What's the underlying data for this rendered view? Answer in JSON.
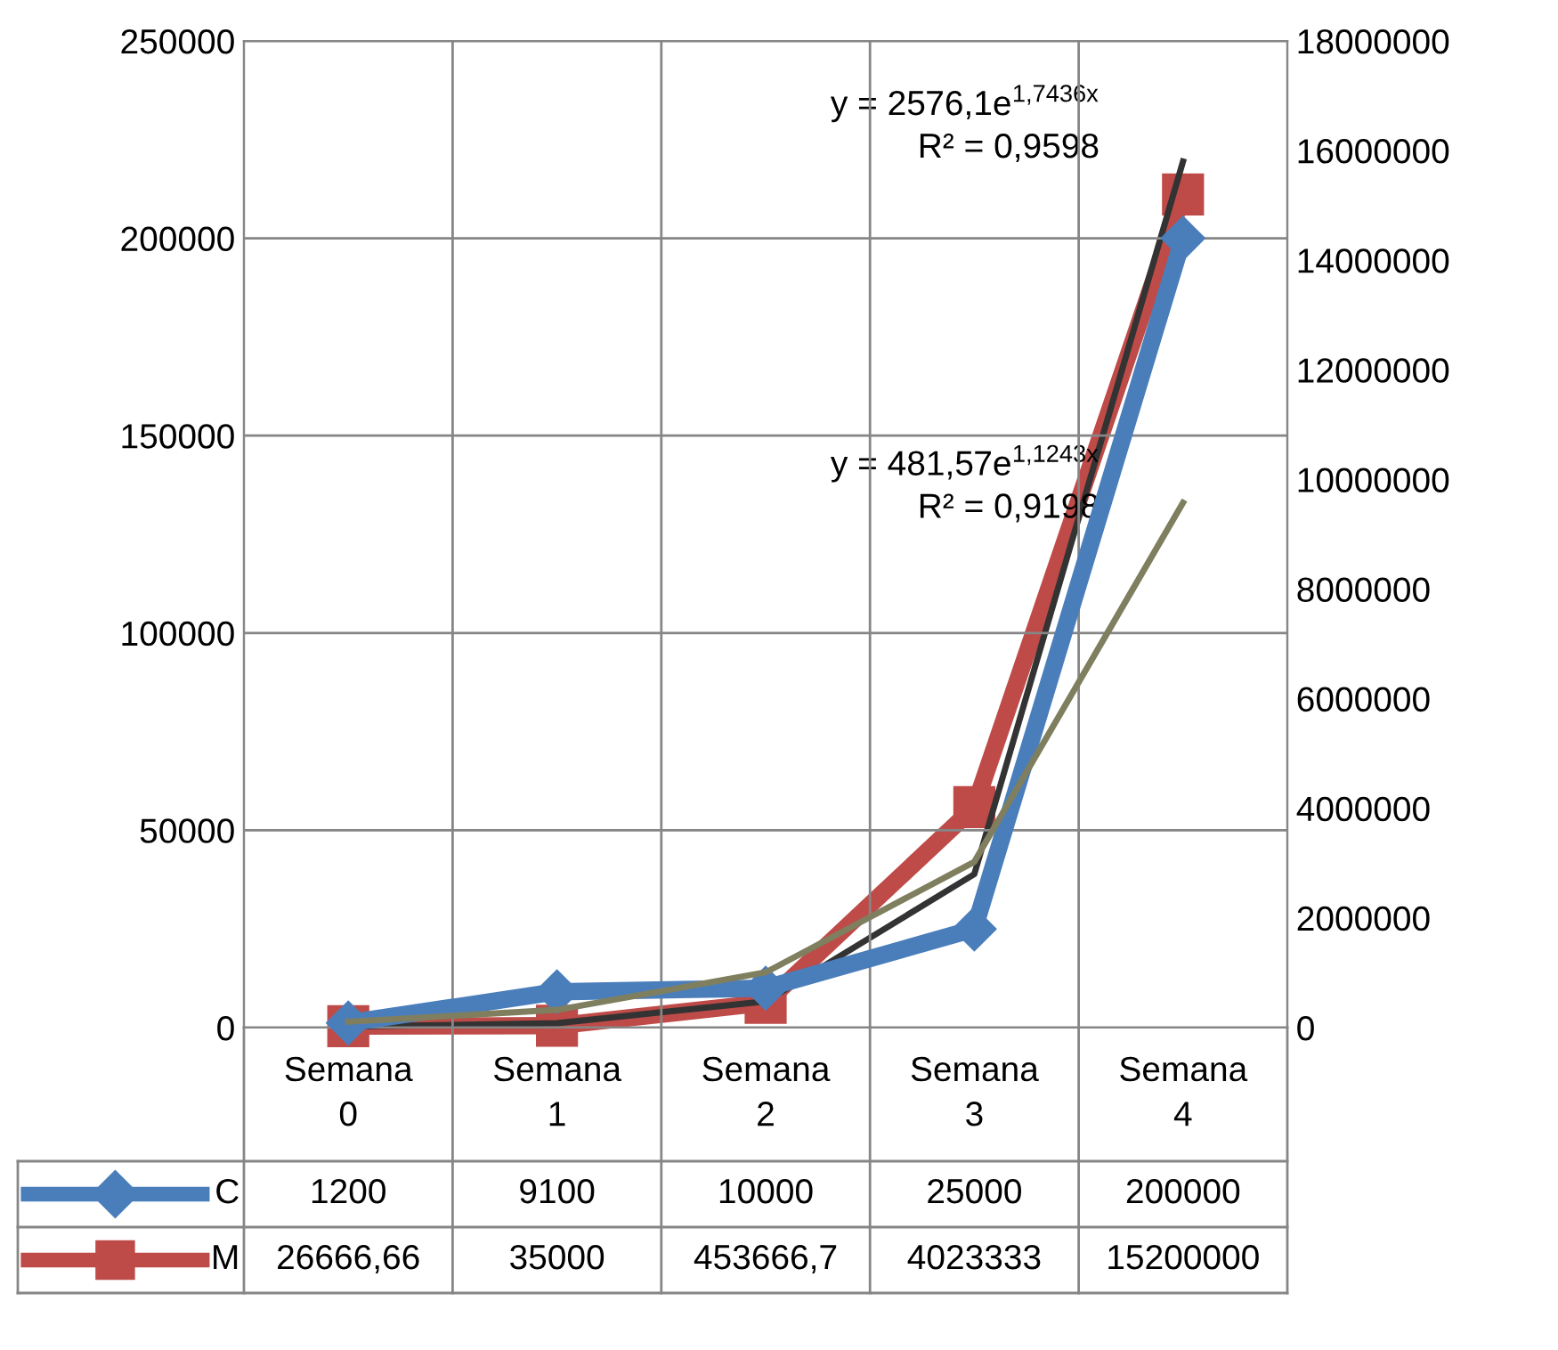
{
  "chart_data": {
    "type": "line",
    "categories": [
      "Semana 0",
      "Semana 1",
      "Semana 2",
      "Semana 3",
      "Semana 4"
    ],
    "series": [
      {
        "name": "C",
        "color": "#4a7ebb",
        "marker": "diamond",
        "values": [
          1200,
          9100,
          10000,
          25000,
          200000
        ],
        "value_labels": [
          "1200",
          "9100",
          "10000",
          "25000",
          "200000"
        ]
      },
      {
        "name": "M",
        "color": "#be4b48",
        "marker": "square",
        "axis": "y2",
        "values": [
          26666.66,
          35000,
          453666.7,
          4023333,
          15200000
        ],
        "value_labels": [
          "26666,66",
          "35000",
          "453666,7",
          "4023333",
          "15200000"
        ]
      },
      {
        "type": "line",
        "color": "#7f7f5f",
        "marker": "none",
        "values": [
          1500,
          4500,
          14000,
          42000,
          133000
        ]
      },
      {
        "type": "line",
        "color": "#333333",
        "marker": "none",
        "axis": "y2",
        "values": [
          20000,
          80000,
          480000,
          2800000,
          15800000
        ]
      }
    ],
    "ylim": [
      0,
      250000
    ],
    "yticks": [
      0,
      50000,
      100000,
      150000,
      200000,
      250000
    ],
    "y2lim": [
      0,
      18000000
    ],
    "y2ticks": [
      0,
      2000000,
      4000000,
      6000000,
      8000000,
      10000000,
      12000000,
      14000000,
      16000000,
      18000000
    ],
    "grid": true,
    "legend": "bottom left",
    "annotations": [
      "y = 2576,1e$^{1,7436x}$\nR² = 0,9598",
      "y = 481,57e$^{1,1243x}$\nR² = 0,9198"
    ]
  }
}
